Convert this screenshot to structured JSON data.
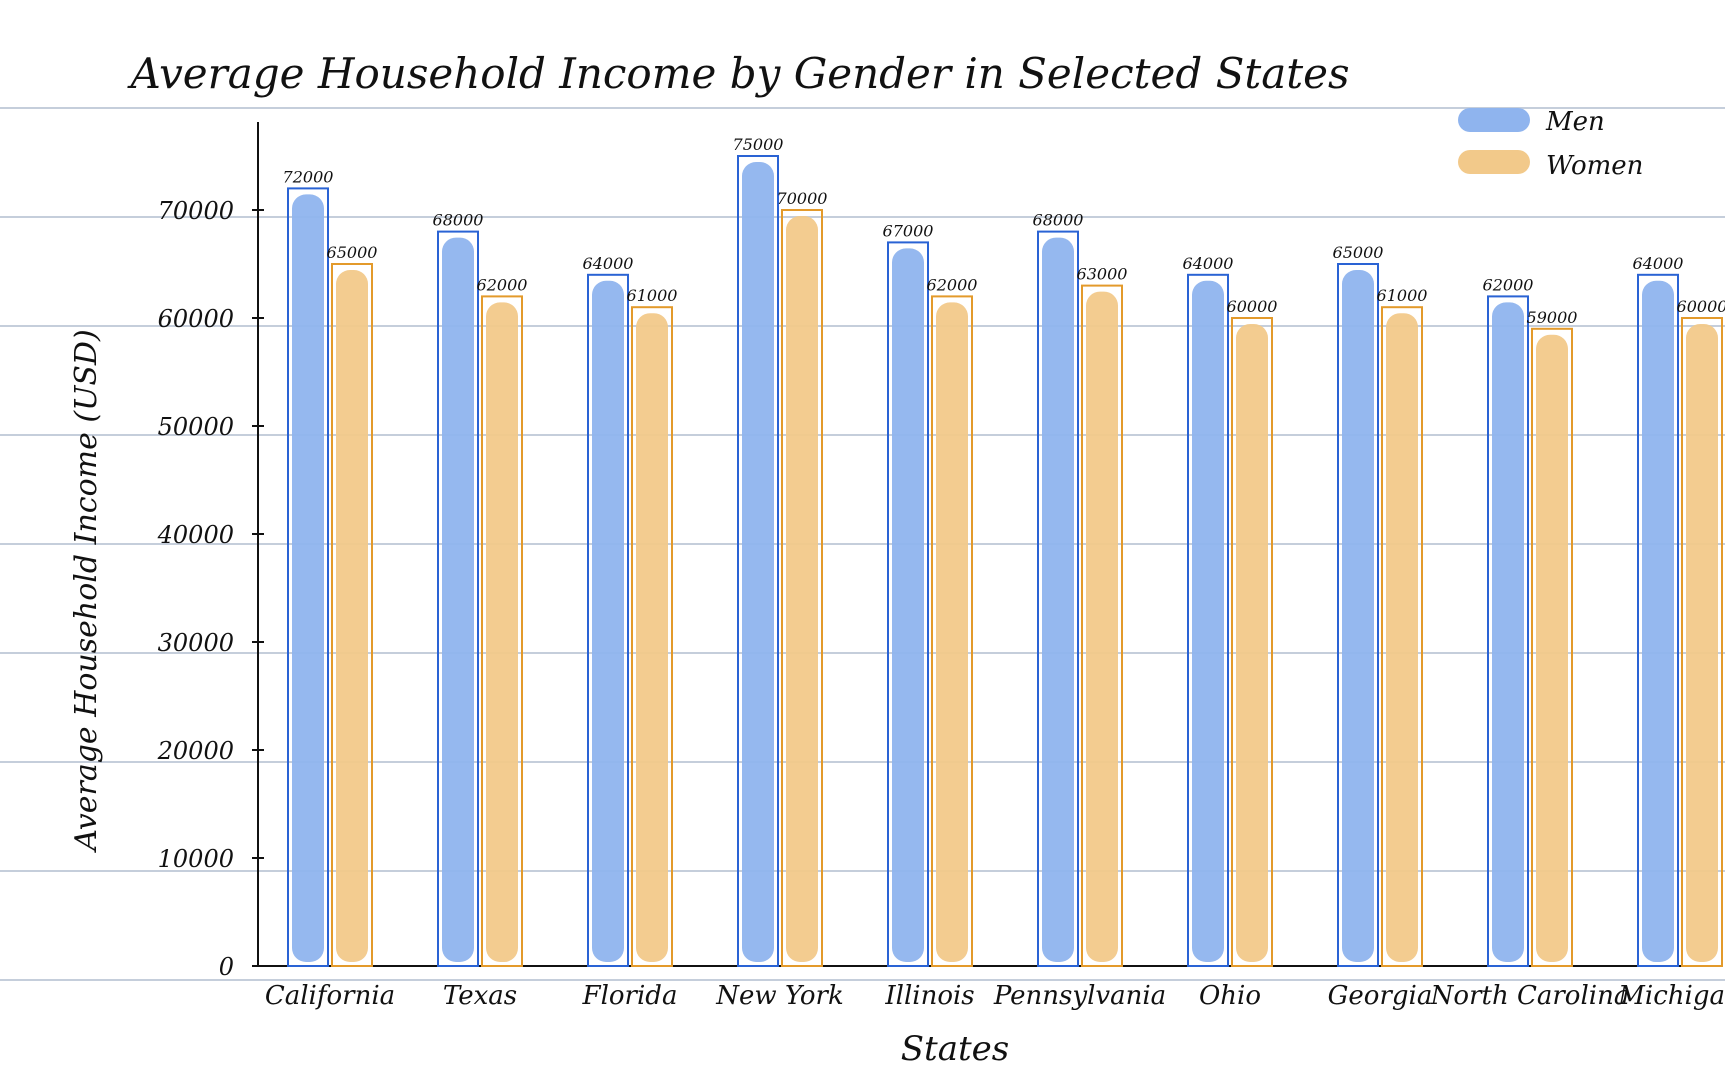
{
  "chart_data": {
    "type": "bar",
    "title": "Average Household Income by Gender in Selected States",
    "xlabel": "States",
    "ylabel": "Average Household Income (USD)",
    "ylim": [
      0,
      75000
    ],
    "yticks": [
      "0",
      "10000",
      "20000",
      "30000",
      "40000",
      "50000",
      "60000",
      "70000"
    ],
    "grid": true,
    "legend_position": "top-right",
    "categories": [
      "California",
      "Texas",
      "Florida",
      "New York",
      "Illinois",
      "Pennsylvania",
      "Ohio",
      "Georgia",
      "North Carolina",
      "Michigan"
    ],
    "series": [
      {
        "name": "Men",
        "color": "#8fb4ee",
        "outline": "#2a63d4",
        "values": [
          72000,
          68000,
          64000,
          75000,
          67000,
          68000,
          64000,
          65000,
          62000,
          64000
        ],
        "labels": [
          "72000",
          "68000",
          "64000",
          "75000",
          "67000",
          "68000",
          "64000",
          "65000",
          "62000",
          "64000"
        ]
      },
      {
        "name": "Women",
        "color": "#f2c98a",
        "outline": "#e39a2b",
        "values": [
          65000,
          62000,
          61000,
          70000,
          62000,
          63000,
          60000,
          61000,
          59000,
          60000
        ],
        "labels": [
          "65000",
          "62000",
          "61000",
          "70000",
          "62000",
          "63000",
          "60000",
          "61000",
          "59000",
          "60000"
        ]
      }
    ]
  }
}
